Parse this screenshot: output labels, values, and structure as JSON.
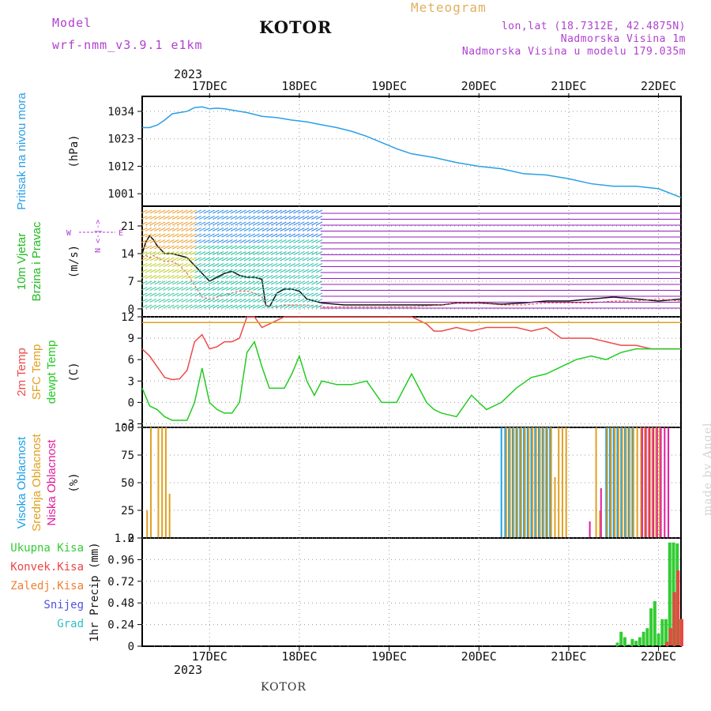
{
  "header": {
    "model_label": "Model",
    "model_name": "wrf-nmm_v3.9.1  e1km",
    "station": "KOTOR",
    "meteogram_label": "Meteogram",
    "lonlat": "lon,lat (18.7312E, 42.4875N)",
    "elevation": "Nadmorska Visina 1m",
    "model_elevation": "Nadmorska Visina u modelu 179.035m"
  },
  "footer": {
    "station": "KOTOR",
    "credit": "made by Angel"
  },
  "colors": {
    "pressure": "#2b9fe6",
    "temp2m": "#ee4a4a",
    "sfc_temp": "#e0a020",
    "dewpoint": "#22cc22",
    "high_cloud": "#1aa0e8",
    "mid_cloud": "#e0a020",
    "low_cloud": "#e01e9e",
    "total_precip": "#33cc33",
    "conv_precip": "#ee4444",
    "freezing_precip": "#f08030",
    "snow": "#5050e0",
    "graupel": "#30c0c0",
    "wind_label": "#22bb22",
    "vector_key": "#b040d0"
  },
  "chart_data": [
    {
      "type": "line",
      "panel": "pressure",
      "ylabel_main": "Pritisak na nivou mora",
      "unit": "(hPa)",
      "yticks": [
        "1034",
        "1023",
        "1012",
        "1001"
      ],
      "ylim": [
        996,
        1040
      ],
      "x_hours": [
        0,
        2,
        4,
        6,
        8,
        10,
        12,
        14,
        16,
        18,
        20,
        22,
        24,
        28,
        32,
        36,
        40,
        44,
        48,
        52,
        56,
        60,
        64,
        68,
        72,
        78,
        84,
        90,
        96,
        102,
        108,
        114,
        120,
        126,
        132,
        138,
        144
      ],
      "series": [
        {
          "values": [
            1027.5,
            1027.5,
            1028.5,
            1030.5,
            1033.0,
            1033.5,
            1034.0,
            1035.5,
            1035.8,
            1035.0,
            1035.3,
            1035.0,
            1034.5,
            1033.5,
            1032.0,
            1031.5,
            1030.5,
            1029.8,
            1028.6,
            1027.5,
            1026.0,
            1024.0,
            1021.5,
            1019.0,
            1017.0,
            1015.5,
            1013.5,
            1012.0,
            1011.0,
            1009.0,
            1008.5,
            1007.0,
            1005.0,
            1004.0,
            1004.0,
            1003.0,
            999.5
          ]
        }
      ]
    },
    {
      "type": "line",
      "panel": "wind",
      "ylabel_main": "10m Vjetar",
      "ylabel_sub": "Brzina i Pravac",
      "unit": "(m/s)",
      "vector_key": [
        "N",
        "<-|->",
        "E"
      ],
      "yticks": [
        "21",
        "14",
        "7",
        "0"
      ],
      "ylim": [
        -2,
        26
      ],
      "x_hours": [
        0,
        1,
        2,
        3,
        4,
        5,
        6,
        7,
        8,
        10,
        12,
        14,
        16,
        18,
        20,
        22,
        24,
        26,
        28,
        30,
        32,
        33,
        34,
        36,
        38,
        40,
        42,
        44,
        48,
        54,
        60,
        66,
        72,
        80,
        84,
        90,
        96,
        102,
        108,
        114,
        120,
        126,
        132,
        138,
        144
      ],
      "series": [
        {
          "name": "speed",
          "values": [
            14.0,
            17.0,
            18.5,
            17.5,
            16.0,
            15.0,
            14.0,
            14.0,
            14.0,
            13.5,
            13.0,
            11.0,
            9.0,
            7.0,
            8.0,
            9.0,
            9.5,
            8.5,
            8.0,
            8.0,
            7.5,
            1.0,
            0.5,
            4.0,
            5.0,
            5.0,
            4.5,
            2.5,
            1.5,
            1.0,
            1.0,
            1.0,
            1.0,
            1.0,
            1.5,
            1.5,
            1.2,
            1.5,
            2.0,
            2.0,
            2.5,
            3.0,
            2.5,
            2.0,
            2.5
          ]
        },
        {
          "name": "gust",
          "values": [
            13.0,
            13.5,
            13.0,
            13.5,
            13.0,
            12.5,
            12.0,
            12.0,
            12.0,
            11.0,
            9.0,
            6.0,
            3.0,
            2.5,
            3.0,
            3.5,
            4.0,
            4.5,
            4.5,
            4.0,
            3.0,
            1.0,
            0.5,
            0.5,
            1.0,
            1.0,
            1.0,
            1.0,
            0.5,
            0.5,
            0.5,
            0.5,
            0.5,
            1.0,
            1.5,
            1.5,
            1.0,
            1.0,
            1.5,
            1.5,
            1.5,
            2.0,
            2.0,
            2.5,
            2.0
          ]
        }
      ]
    },
    {
      "type": "line",
      "panel": "temperature",
      "ylabel_main": "2m Temp",
      "ylabel_sub": "SFC Temp",
      "ylabel_sub2": "dewpt Temp",
      "unit": "(C)",
      "yticks": [
        "12",
        "9",
        "6",
        "3",
        "0",
        "-3"
      ],
      "ylim": [
        -3.5,
        12
      ],
      "x_hours": [
        0,
        2,
        4,
        6,
        8,
        10,
        12,
        14,
        16,
        18,
        20,
        22,
        24,
        26,
        28,
        30,
        32,
        34,
        36,
        38,
        40,
        42,
        44,
        46,
        48,
        52,
        56,
        60,
        64,
        68,
        72,
        76,
        78,
        80,
        84,
        88,
        92,
        96,
        100,
        104,
        108,
        112,
        116,
        120,
        124,
        128,
        132,
        136,
        140,
        144
      ],
      "series": [
        {
          "name": "2m Temp",
          "values": [
            7.5,
            6.5,
            5.0,
            3.5,
            3.2,
            3.3,
            4.5,
            8.5,
            9.5,
            7.5,
            7.8,
            8.5,
            8.5,
            9.0,
            12.0,
            12.0,
            10.5,
            11.0,
            11.5,
            12.0,
            12.0,
            12.0,
            12.0,
            12.0,
            12.0,
            12.0,
            12.0,
            12.0,
            12.0,
            12.0,
            12.0,
            11.0,
            10.0,
            10.0,
            10.5,
            10.0,
            10.5,
            10.5,
            10.5,
            10.0,
            10.5,
            9.0,
            9.0,
            9.0,
            8.5,
            8.0,
            8.0,
            7.5,
            7.5,
            7.5
          ]
        },
        {
          "name": "dewpt Temp",
          "values": [
            2.0,
            -0.5,
            -1.0,
            -2.0,
            -2.5,
            -2.5,
            -2.5,
            0.0,
            4.8,
            0.0,
            -1.0,
            -1.5,
            -1.5,
            0.0,
            7.0,
            8.5,
            5.0,
            2.0,
            2.0,
            2.0,
            4.0,
            6.5,
            3.0,
            1.0,
            3.0,
            2.5,
            2.5,
            3.0,
            0.0,
            0.0,
            4.0,
            0.0,
            -1.0,
            -1.5,
            -2.0,
            1.0,
            -1.0,
            0.0,
            2.0,
            3.5,
            4.0,
            5.0,
            6.0,
            6.5,
            6.0,
            7.0,
            7.5,
            7.5,
            7.5,
            7.5
          ]
        },
        {
          "name": "SFC Temp",
          "values": [
            11.2,
            11.2,
            11.2,
            11.2,
            11.2,
            11.2,
            11.2,
            11.2,
            11.2,
            11.2,
            11.2,
            11.2,
            11.2,
            11.2,
            11.2,
            11.2,
            11.2,
            11.2,
            11.2,
            11.2,
            11.2,
            11.2,
            11.2,
            11.2,
            11.2,
            11.2,
            11.2,
            11.2,
            11.2,
            11.2,
            11.2,
            11.2,
            11.2,
            11.2,
            11.2,
            11.2,
            11.2,
            11.2,
            11.2,
            11.2,
            11.2,
            11.2,
            11.2,
            11.2,
            11.2,
            11.2,
            11.2,
            11.2,
            11.2,
            11.2
          ]
        }
      ]
    },
    {
      "type": "bar",
      "panel": "cloud",
      "ylabel_main": "Visoka Oblacnost",
      "ylabel_sub": "Srednja Oblacnost",
      "ylabel_sub2": "Niska Oblacnost",
      "unit": "(%)",
      "yticks": [
        "100",
        "75",
        "50",
        "25",
        "0"
      ],
      "ylim": [
        0,
        100
      ],
      "x_hours": [
        1,
        2,
        3,
        4,
        5,
        6,
        7,
        96,
        97,
        98,
        99,
        100,
        101,
        102,
        103,
        104,
        105,
        106,
        107,
        108,
        109,
        110,
        111,
        112,
        113,
        119,
        120,
        121,
        122,
        123,
        124,
        125,
        126,
        127,
        128,
        129,
        130,
        131,
        132,
        133,
        134,
        135,
        136,
        137,
        138,
        139,
        140,
        141,
        142,
        143
      ],
      "series": [
        {
          "name": "Visoka Oblacnost",
          "values": [
            0,
            0,
            0,
            0,
            0,
            0,
            0,
            100,
            100,
            100,
            100,
            100,
            100,
            100,
            100,
            100,
            100,
            100,
            100,
            100,
            100,
            0,
            0,
            0,
            0,
            0,
            0,
            0,
            0,
            0,
            100,
            100,
            100,
            100,
            100,
            100,
            100,
            100,
            0,
            0,
            0,
            0,
            0,
            0,
            0,
            0,
            0,
            0,
            0,
            0
          ]
        },
        {
          "name": "Srednja Oblacnost",
          "values": [
            25,
            100,
            0,
            100,
            100,
            100,
            40,
            0,
            100,
            100,
            100,
            100,
            100,
            100,
            100,
            100,
            100,
            100,
            100,
            100,
            100,
            55,
            100,
            100,
            100,
            0,
            0,
            100,
            25,
            0,
            100,
            100,
            100,
            100,
            100,
            100,
            100,
            100,
            100,
            100,
            100,
            100,
            100,
            100,
            100,
            0,
            0,
            0,
            0,
            0
          ]
        },
        {
          "name": "Niska Oblacnost",
          "values": [
            0,
            0,
            0,
            0,
            0,
            0,
            0,
            0,
            0,
            0,
            0,
            0,
            0,
            0,
            0,
            0,
            0,
            0,
            0,
            0,
            0,
            0,
            0,
            0,
            0,
            15,
            0,
            0,
            45,
            0,
            0,
            0,
            0,
            0,
            0,
            0,
            0,
            0,
            0,
            100,
            100,
            100,
            100,
            100,
            100,
            100,
            100,
            0,
            0,
            0
          ]
        }
      ]
    },
    {
      "type": "bar",
      "panel": "precipitation",
      "ylabel_main": "1hr Precip (mm)",
      "legend": [
        "Ukupna Kisa",
        "Konvek.Kisa",
        "Zaledj.Kisa",
        "Snijeg",
        "Grad"
      ],
      "yticks": [
        "1.2",
        "0.96",
        "0.72",
        "0.48",
        "0.24",
        "0"
      ],
      "ylim": [
        0,
        1.2
      ],
      "x_hours": [
        127,
        128,
        129,
        130,
        131,
        132,
        133,
        134,
        135,
        136,
        137,
        138,
        139,
        140,
        141,
        142,
        143,
        144
      ],
      "series": [
        {
          "name": "Ukupna Kisa",
          "values": [
            0.04,
            0.16,
            0.1,
            0.02,
            0.08,
            0.06,
            0.1,
            0.16,
            0.2,
            0.42,
            0.5,
            0.14,
            0.3,
            0.3,
            1.15,
            1.15,
            1.14,
            0.3
          ]
        },
        {
          "name": "Konvek.Kisa",
          "values": [
            0,
            0,
            0,
            0,
            0,
            0,
            0,
            0,
            0,
            0,
            0,
            0,
            0,
            0.05,
            0.2,
            0.6,
            0.84,
            0.3
          ]
        }
      ]
    }
  ],
  "x_axis": {
    "year": "2023",
    "days": [
      "17DEC",
      "18DEC",
      "19DEC",
      "20DEC",
      "21DEC",
      "22DEC"
    ]
  }
}
